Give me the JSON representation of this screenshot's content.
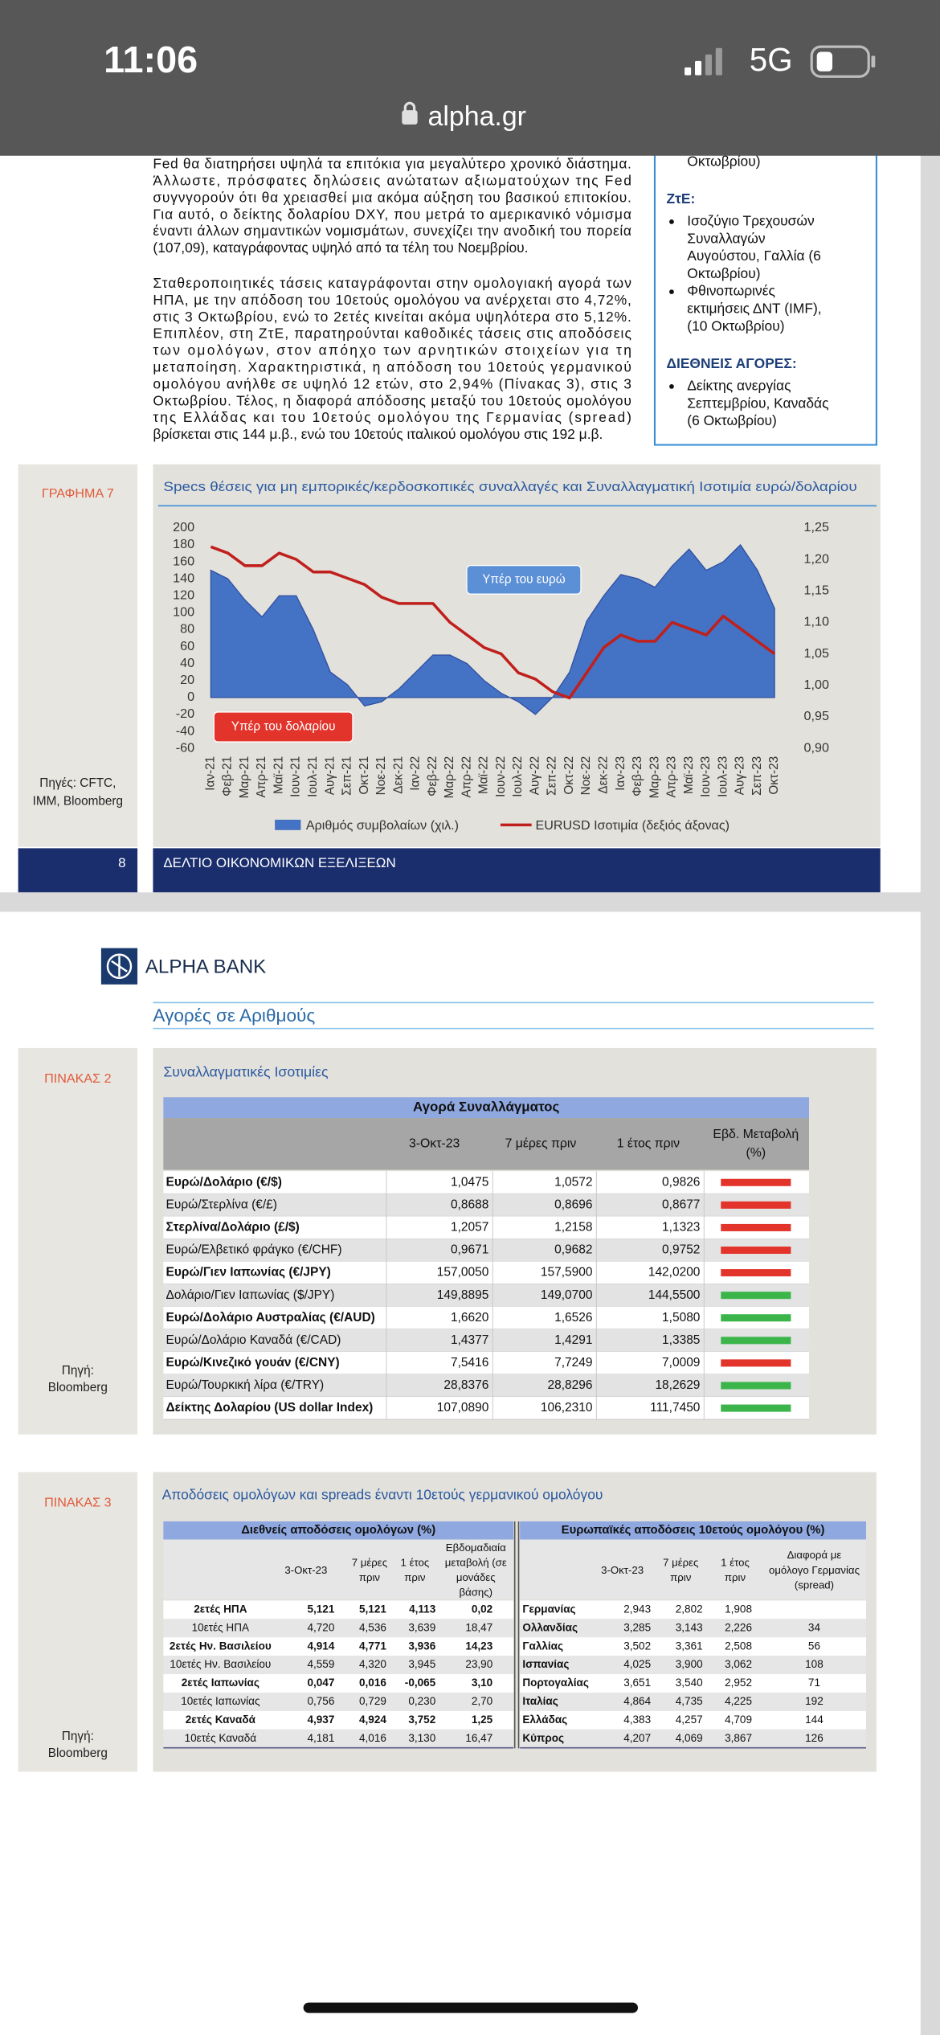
{
  "status_bar": {
    "time": "11:06",
    "network": "5G"
  },
  "address_bar": {
    "url": "alpha.gr"
  },
  "page_1": {
    "paragraphs": [
      [
        "Fed θα διατηρήσει υψηλά τα επιτόκια για μεγαλύτερο χρονικό διάστημα.",
        "Άλλωστε, πρόσφατες δηλώσεις ανώτατων αξιωματούχων της Fed",
        "συγνγορούν ότι θα χρειασθεί μια ακόμα αύξηση του βασικού επιτοκίου.",
        "Για αυτό, ο δείκτης δολαρίου DXY, που μετρά το αμερικανικό νόμισμα",
        "έναντι άλλων σημαντικών νομισμάτων, συνεχίζει την ανοδική του πορεία",
        "(107,09), καταγράφοντας υψηλό από τα τέλη του Νοεμβρίου."
      ],
      [
        "Σταθεροποιητικές τάσεις καταγράφονται στην ομολογιακή αγορά των",
        "ΗΠΑ, με την απόδοση του 10ετούς ομολόγου να ανέρχεται στο 4,72%,",
        "στις 3 Οκτωβρίου, ενώ το 2ετές κινείται ακόμα υψηλότερα στο 5,12%.",
        "Επιπλέον, στη ΖτΕ, παρατηρούνται καθοδικές τάσεις στις αποδόσεις",
        "των ομολόγων, στον απόηχο των αρνητικών στοιχείων για τη",
        "μεταποίηση. Χαρακτηριστικά, η απόδοση του 10ετούς γερμανικού",
        "ομολόγου ανήλθε σε υψηλό 12 ετών, στο 2,94% (Πίνακας 3), στις 3",
        "Οκτωβρίου. Τέλος, η διαφορά απόδοσης μεταξύ του 10ετούς ομολόγου",
        "της Ελλάδας και του 10ετούς ομολόγου της Γερμανίας (spread)",
        "βρίσκεται στις 144 μ.β., ενώ του 10ετούς ιταλικού ομολόγου στις 192 μ.β."
      ]
    ],
    "sidebar": {
      "top_line": "Οκτωβρίου)",
      "sections": [
        {
          "heading": "ΖτΕ:",
          "items": [
            [
              "Ισοζύγιο Τρεχουσών",
              "Συναλλαγών",
              "Αυγούστου, Γαλλία (6",
              "Οκτωβρίου)"
            ],
            [
              "Φθινοπωρινές",
              "εκτιμήσεις ΔΝΤ (IMF),",
              "(10 Οκτωβρίου)"
            ]
          ]
        },
        {
          "heading": "ΔΙΕΘΝΕΙΣ ΑΓΟΡΕΣ:",
          "items": [
            [
              "Δείκτης ανεργίας",
              "Σεπτεμβρίου, Καναδάς",
              "(6 Οκτωβρίου)"
            ]
          ]
        }
      ]
    },
    "figure_label": "ΓΡΑΦΗΜΑ 7",
    "source": [
      "Πηγές: CFTC,",
      "IMM, Bloomberg"
    ],
    "footer": {
      "page_number": 8,
      "title": "ΔΕΛΤΙΟ ΟΙΚΟΝΟΜΙΚΩΝ ΕΞΕΛΙΞΕΩΝ"
    }
  },
  "chart_data": {
    "type": "area",
    "title": "Specs θέσεις για μη εμπορικές/κερδοσκοπικές συναλλαγές και Συναλλαγματική Ισοτιμία ευρώ/δολαρίου",
    "categories": [
      "Ιαν-21",
      "Φεβ-21",
      "Μαρ-21",
      "Απρ-21",
      "Μαϊ-21",
      "Ιουν-21",
      "Ιουλ-21",
      "Αυγ-21",
      "Σεπ-21",
      "Οκτ-21",
      "Νοε-21",
      "Δεκ-21",
      "Ιαν-22",
      "Φεβ-22",
      "Μαρ-22",
      "Απρ-22",
      "Μαϊ-22",
      "Ιουν-22",
      "Ιουλ-22",
      "Αυγ-22",
      "Σεπ-22",
      "Οκτ-22",
      "Νοε-22",
      "Δεκ-22",
      "Ιαν-23",
      "Φεβ-23",
      "Μαρ-23",
      "Απρ-23",
      "Μαϊ-23",
      "Ιουν-23",
      "Ιουλ-23",
      "Αυγ-23",
      "Σεπ-23",
      "Οκτ-23"
    ],
    "series": [
      {
        "name": "Αριθμός συμβολαίων (χιλ.)",
        "type": "area",
        "color": "#4472c4",
        "values": [
          150,
          140,
          115,
          95,
          120,
          120,
          80,
          30,
          15,
          -10,
          -5,
          10,
          30,
          50,
          50,
          40,
          20,
          5,
          -5,
          -20,
          0,
          30,
          90,
          120,
          145,
          140,
          130,
          155,
          175,
          150,
          160,
          180,
          150,
          105
        ]
      },
      {
        "name": "EURUSD Ισοτιμία (δεξιός άξονας)",
        "type": "line",
        "color": "#c0201c",
        "axis": "y2",
        "values": [
          1.22,
          1.21,
          1.19,
          1.19,
          1.21,
          1.2,
          1.18,
          1.18,
          1.17,
          1.16,
          1.14,
          1.13,
          1.13,
          1.13,
          1.1,
          1.08,
          1.06,
          1.05,
          1.02,
          1.01,
          0.99,
          0.98,
          1.02,
          1.06,
          1.08,
          1.07,
          1.07,
          1.1,
          1.09,
          1.08,
          1.11,
          1.09,
          1.07,
          1.05
        ]
      }
    ],
    "ylim": [
      -60,
      200
    ],
    "yticks": [
      -60,
      -40,
      -20,
      0,
      20,
      40,
      60,
      80,
      100,
      120,
      140,
      160,
      180,
      200
    ],
    "y2lim": [
      0.9,
      1.25
    ],
    "y2ticks": [
      {
        "value": 0.9,
        "label": "0,90"
      },
      {
        "value": 0.95,
        "label": "0,95"
      },
      {
        "value": 1.0,
        "label": "1,00"
      },
      {
        "value": 1.05,
        "label": "1,05"
      },
      {
        "value": 1.1,
        "label": "1,10"
      },
      {
        "value": 1.15,
        "label": "1,15"
      },
      {
        "value": 1.2,
        "label": "1,20"
      },
      {
        "value": 1.25,
        "label": "1,25"
      }
    ],
    "annotations": [
      {
        "text": "Υπέρ του ευρώ",
        "color": "#5b8fd6"
      },
      {
        "text": "Υπέρ του δολαρίου",
        "color": "#e3342b"
      }
    ],
    "legend": "bottom"
  },
  "page_2": {
    "logo": "ALPHA BANK",
    "section_title": "Αγορές σε Αριθμούς",
    "table_2": {
      "label": "ΠΙΝΑΚΑΣ 2",
      "title": "Συναλλαγματικές Ισοτιμίες",
      "header": "Αγορά Συναλλάγματος",
      "columns": [
        [
          "3-Οκτ-23"
        ],
        [
          "7 μέρες πριν"
        ],
        [
          "1 έτος πριν"
        ],
        [
          "Εβδ. Μεταβολή",
          "(%)"
        ]
      ],
      "rows": [
        {
          "name": "Ευρώ/Δολάριο (€/$)",
          "values": [
            "1,0475",
            "1,0572",
            "0,9826"
          ],
          "change_color": "#e3342b"
        },
        {
          "name": "Ευρώ/Στερλίνα (€/£)",
          "values": [
            "0,8688",
            "0,8696",
            "0,8677"
          ],
          "change_color": "#e3342b"
        },
        {
          "name": "Στερλίνα/Δολάριο (£/$)",
          "values": [
            "1,2057",
            "1,2158",
            "1,1323"
          ],
          "change_color": "#e3342b"
        },
        {
          "name": "Ευρώ/Ελβετικό φράγκο (€/CHF)",
          "values": [
            "0,9671",
            "0,9682",
            "0,9752"
          ],
          "change_color": "#e3342b"
        },
        {
          "name": "Ευρώ/Γιεν Ιαπωνίας (€/JPY)",
          "values": [
            "157,0050",
            "157,5900",
            "142,0200"
          ],
          "change_color": "#e3342b"
        },
        {
          "name": "Δολάριο/Γιεν Ιαπωνίας ($/JPY)",
          "values": [
            "149,8895",
            "149,0700",
            "144,5500"
          ],
          "change_color": "#3bb54a"
        },
        {
          "name": "Ευρώ/Δολάριο Αυστραλίας (€/AUD)",
          "values": [
            "1,6620",
            "1,6526",
            "1,5080"
          ],
          "change_color": "#3bb54a"
        },
        {
          "name": "Ευρώ/Δολάριο Καναδά (€/CAD)",
          "values": [
            "1,4377",
            "1,4291",
            "1,3385"
          ],
          "change_color": "#3bb54a"
        },
        {
          "name": "Ευρώ/Κινεζικό γουάν (€/CNY)",
          "values": [
            "7,5416",
            "7,7249",
            "7,0009"
          ],
          "change_color": "#e3342b"
        },
        {
          "name": "Ευρώ/Τουρκική λίρα (€/TRY)",
          "values": [
            "28,8376",
            "28,8296",
            "18,2629"
          ],
          "change_color": "#3bb54a"
        },
        {
          "name": "Δείκτης Δολαρίου (US dollar Index)",
          "values": [
            "107,0890",
            "106,2310",
            "111,7450"
          ],
          "change_color": "#3bb54a"
        }
      ],
      "source": [
        "Πηγή:",
        "Bloomberg"
      ]
    },
    "table_3": {
      "label": "ΠΙΝΑΚΑΣ 3",
      "title": "Αποδόσεις ομολόγων και spreads έναντι 10ετούς γερμανικού ομολόγου",
      "left": {
        "header": "Διεθνείς αποδόσεις ομολόγων (%)",
        "columns": [
          [
            "3-Οκτ-23"
          ],
          [
            "7 μέρες",
            "πριν"
          ],
          [
            "1 έτος",
            "πριν"
          ],
          [
            "Εβδομαδιαία",
            "μεταβολή (σε",
            "μονάδες",
            "βάσης)"
          ]
        ],
        "rows": [
          [
            "2ετές ΗΠΑ",
            "5,121",
            "5,121",
            "4,113",
            "0,02"
          ],
          [
            "10ετές ΗΠΑ",
            "4,720",
            "4,536",
            "3,639",
            "18,47"
          ],
          [
            "2ετές Ην. Βασιλείου",
            "4,914",
            "4,771",
            "3,936",
            "14,23"
          ],
          [
            "10ετές Ην. Βασιλείου",
            "4,559",
            "4,320",
            "3,945",
            "23,90"
          ],
          [
            "2ετές Ιαπωνίας",
            "0,047",
            "0,016",
            "-0,065",
            "3,10"
          ],
          [
            "10ετές Ιαπωνίας",
            "0,756",
            "0,729",
            "0,230",
            "2,70"
          ],
          [
            "2ετές Καναδά",
            "4,937",
            "4,924",
            "3,752",
            "1,25"
          ],
          [
            "10ετές Καναδά",
            "4,181",
            "4,016",
            "3,130",
            "16,47"
          ]
        ]
      },
      "right": {
        "header": "Ευρωπαϊκές αποδόσεις 10ετούς ομολόγου (%)",
        "columns": [
          [
            "3-Οκτ-23"
          ],
          [
            "7 μέρες",
            "πριν"
          ],
          [
            "1 έτος",
            "πριν"
          ],
          [
            "Διαφορά με",
            "ομόλογο Γερμανίας",
            "(spread)"
          ]
        ],
        "rows": [
          [
            "Γερμανίας",
            "2,943",
            "2,802",
            "1,908",
            null
          ],
          [
            "Ολλανδίας",
            "3,285",
            "3,143",
            "2,226",
            "34"
          ],
          [
            "Γαλλίας",
            "3,502",
            "3,361",
            "2,508",
            "56"
          ],
          [
            "Ισπανίας",
            "4,025",
            "3,900",
            "3,062",
            "108"
          ],
          [
            "Πορτογαλίας",
            "3,651",
            "3,540",
            "2,952",
            "71"
          ],
          [
            "Ιταλίας",
            "4,864",
            "4,735",
            "4,225",
            "192"
          ],
          [
            "Ελλάδας",
            "4,383",
            "4,257",
            "4,709",
            "144"
          ],
          [
            "Κύπρος",
            "4,207",
            "4,069",
            "3,867",
            "126"
          ]
        ]
      },
      "source": [
        "Πηγή:",
        "Bloomberg"
      ]
    }
  }
}
